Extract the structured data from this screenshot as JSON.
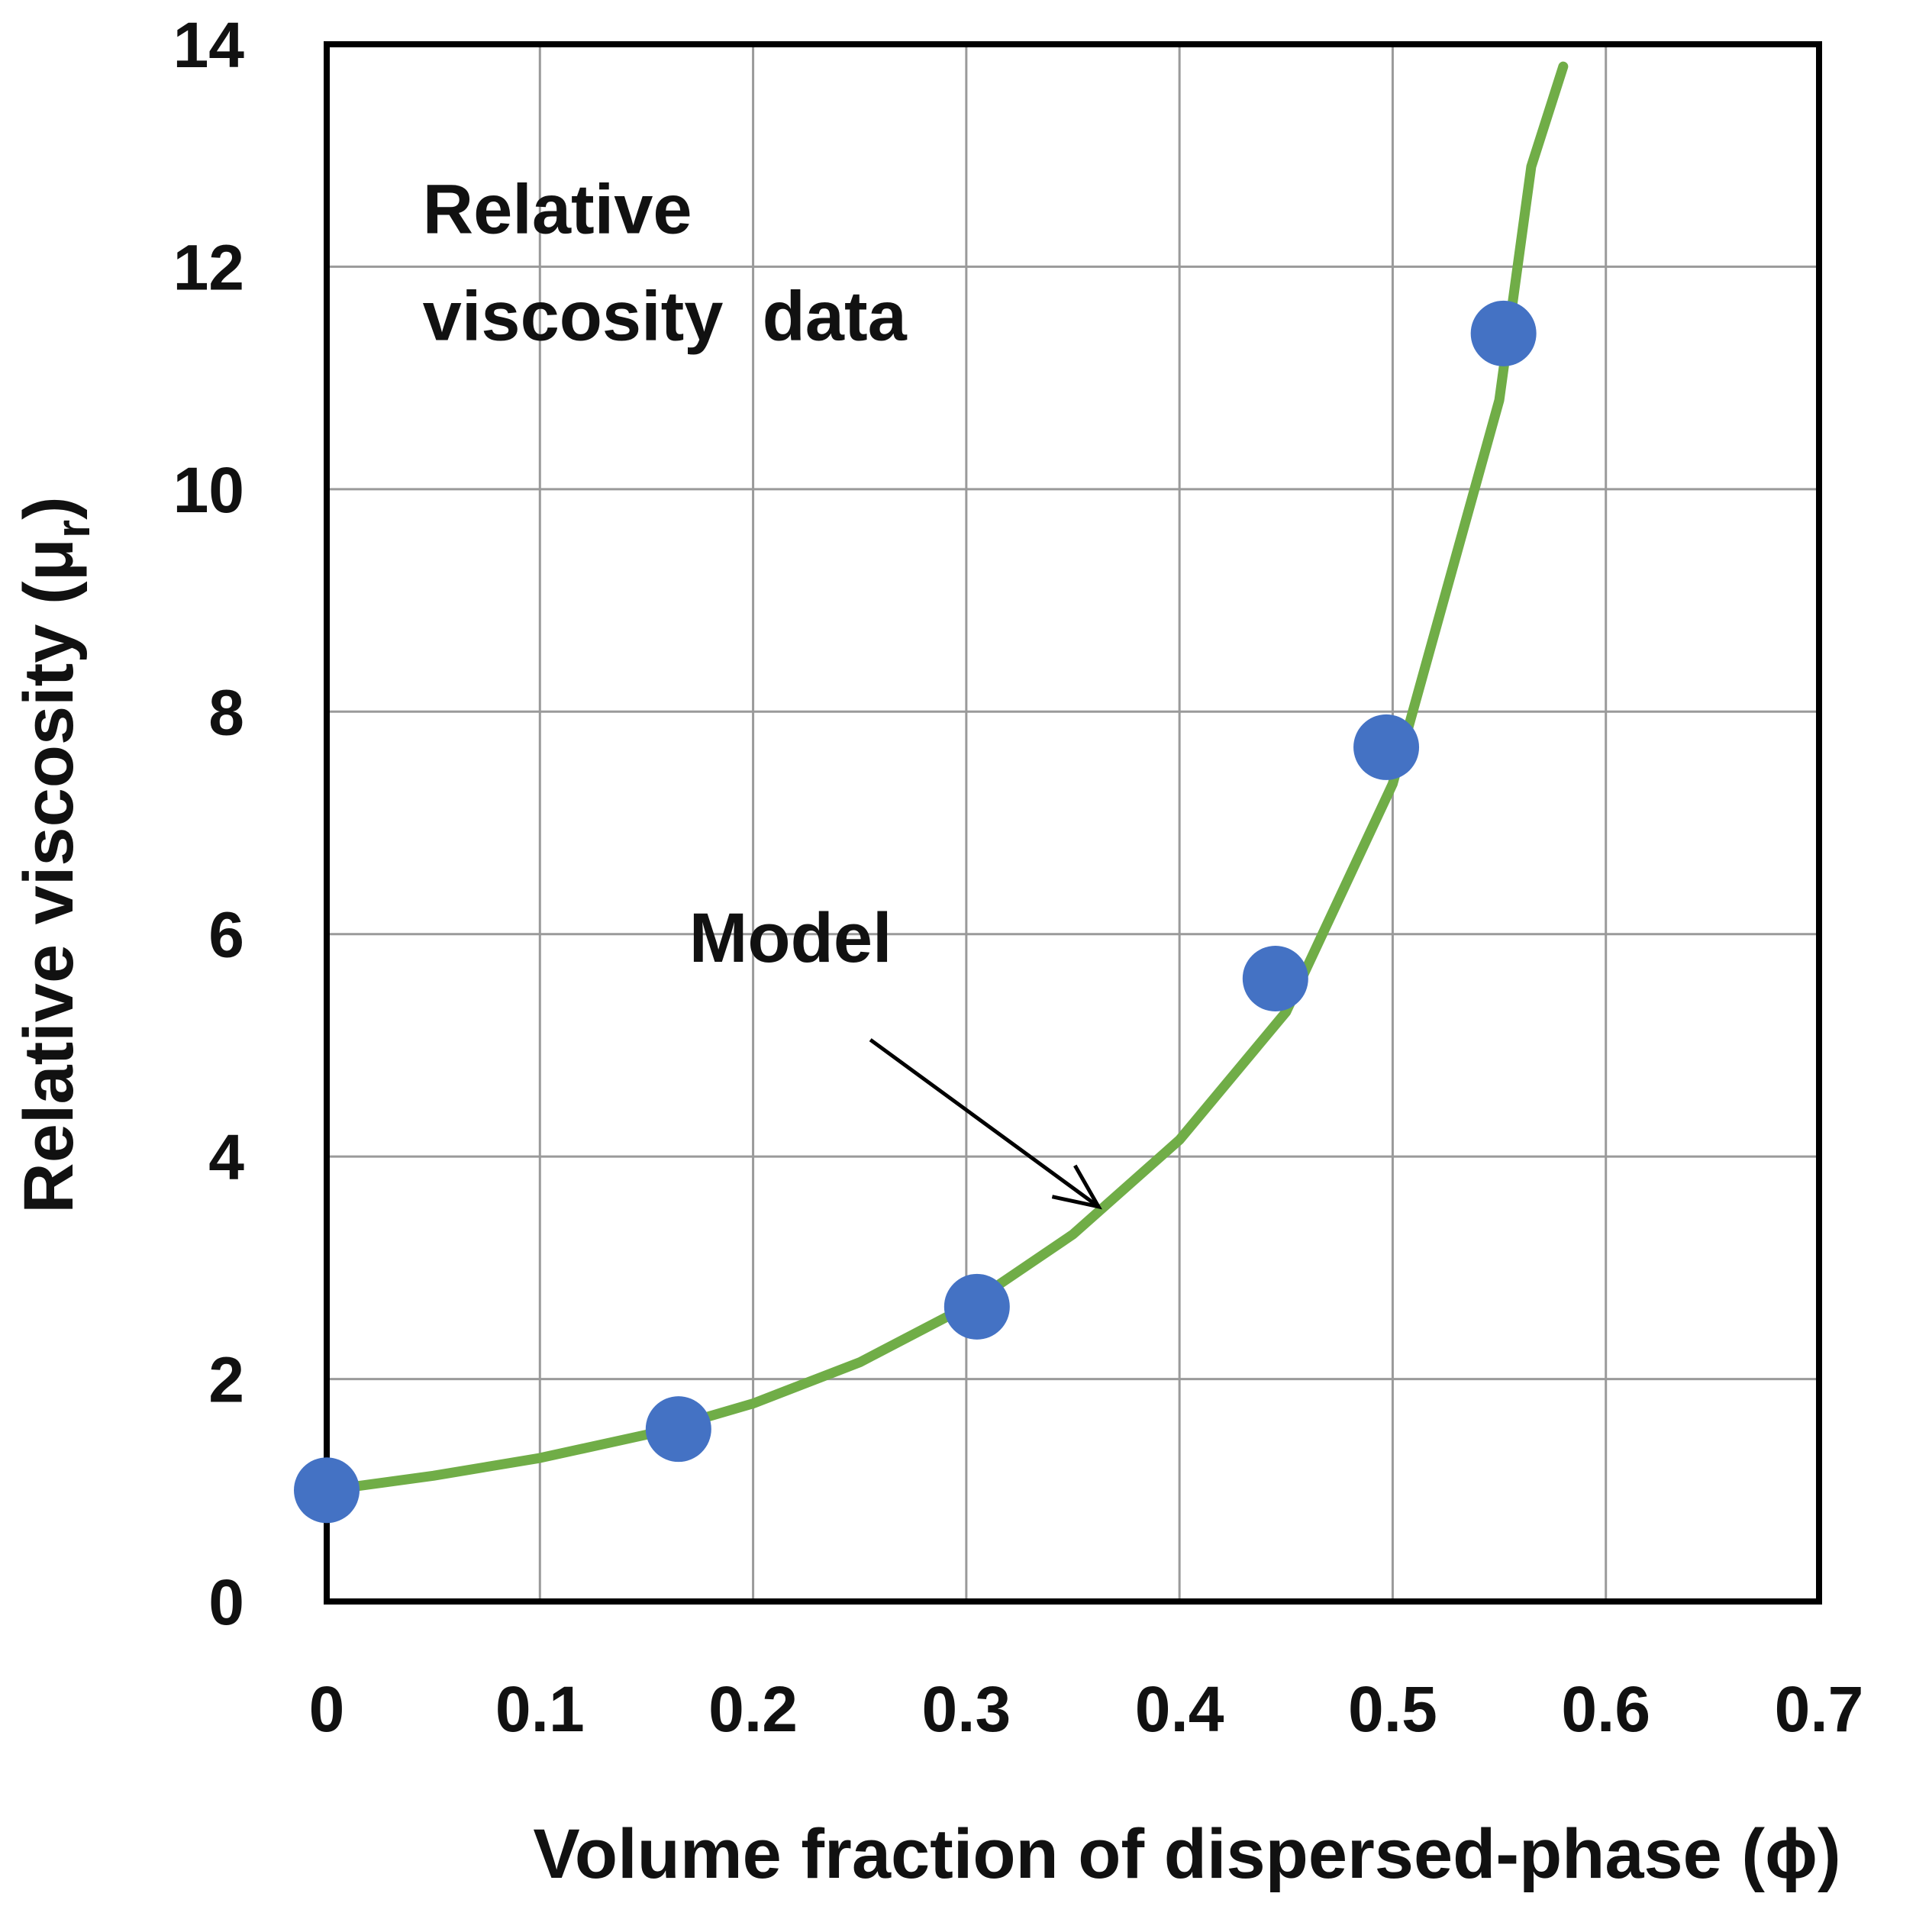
{
  "chart_data": {
    "type": "scatter",
    "title": "",
    "xlabel": "Volume fraction of dispersed-phase (ϕ)",
    "ylabel_main": "Relative viscosity (μ",
    "ylabel_sub": "r",
    "ylabel_close": ")",
    "xlim": [
      0,
      0.7
    ],
    "ylim": [
      0,
      14
    ],
    "grid": true,
    "xticks": [
      0,
      0.1,
      0.2,
      0.3,
      0.4,
      0.5,
      0.6,
      0.7
    ],
    "yticks": [
      0,
      2,
      4,
      6,
      8,
      10,
      12,
      14
    ],
    "xtick_labels": [
      "0",
      "0.1",
      "0.2",
      "0.3",
      "0.4",
      "0.5",
      "0.6",
      "0.7"
    ],
    "ytick_labels": [
      "0",
      "2",
      "4",
      "6",
      "8",
      "10",
      "12",
      "14"
    ],
    "series": [
      {
        "name": "Relative viscosity data",
        "kind": "scatter",
        "color": "#4472C4",
        "x": [
          0.0,
          0.165,
          0.305,
          0.445,
          0.497,
          0.552
        ],
        "y": [
          1.0,
          1.55,
          2.65,
          5.6,
          7.68,
          11.4
        ]
      },
      {
        "name": "Model",
        "kind": "line",
        "color": "#70AD47",
        "x": [
          0.0,
          0.05,
          0.1,
          0.15,
          0.2,
          0.25,
          0.3,
          0.35,
          0.4,
          0.45,
          0.5,
          0.55,
          0.565,
          0.58
        ],
        "y": [
          1.0,
          1.13,
          1.29,
          1.5,
          1.78,
          2.15,
          2.65,
          3.3,
          4.15,
          5.3,
          7.35,
          10.8,
          12.9,
          13.8
        ]
      }
    ],
    "annotations": [
      {
        "text_line1": "Relative",
        "text_line2": "viscosity  data",
        "x": 0.045,
        "y": 12.3
      },
      {
        "text": "Model",
        "x": 0.17,
        "y": 5.75,
        "arrow_from": [
          0.255,
          5.05
        ],
        "arrow_to": [
          0.362,
          3.55
        ]
      }
    ]
  }
}
